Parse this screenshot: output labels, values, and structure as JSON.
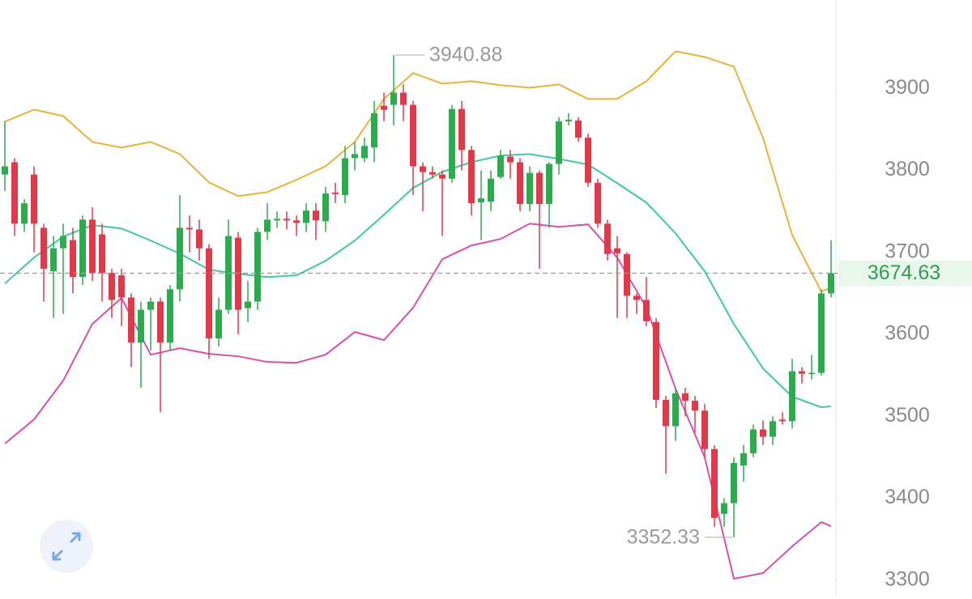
{
  "chart_data": {
    "type": "candlestick",
    "ylim": [
      3282,
      4008
    ],
    "yticks": [
      3300,
      3400,
      3500,
      3600,
      3700,
      3800,
      3900
    ],
    "up_color": "#2eab4f",
    "down_color": "#e03a4a",
    "open": [
      3795,
      3810,
      3735,
      3795,
      3730,
      3677,
      3705,
      3715,
      3670,
      3740,
      3722,
      3675,
      3672,
      3645,
      3590,
      3630,
      3640,
      3590,
      3655,
      3730,
      3728,
      3705,
      3595,
      3630,
      3718,
      3632,
      3640,
      3725,
      3739,
      3741,
      3739,
      3736,
      3751,
      3738,
      3773,
      3770,
      3815,
      3815,
      3828,
      3879,
      3880,
      3895,
      3880,
      3805,
      3798,
      3795,
      3790,
      3875,
      3825,
      3761,
      3762,
      3792,
      3817,
      3810,
      3759,
      3797,
      3759,
      3808,
      3860,
      3861,
      3840,
      3785,
      3735,
      3705,
      3698,
      3647,
      3642,
      3615,
      3520,
      3488,
      3528,
      3519,
      3507,
      3460,
      3381,
      3394,
      3440,
      3455,
      3484,
      3475,
      3496,
      3494,
      3555,
      3552,
      3553,
      3650
    ],
    "high": [
      3860,
      3815,
      3765,
      3805,
      3735,
      3720,
      3735,
      3730,
      3745,
      3755,
      3735,
      3680,
      3680,
      3650,
      3640,
      3645,
      3645,
      3660,
      3770,
      3745,
      3740,
      3710,
      3645,
      3740,
      3725,
      3665,
      3730,
      3760,
      3750,
      3750,
      3745,
      3760,
      3760,
      3780,
      3785,
      3830,
      3835,
      3840,
      3885,
      3895,
      3940.88,
      3905,
      3885,
      3810,
      3805,
      3800,
      3880,
      3885,
      3830,
      3800,
      3800,
      3825,
      3825,
      3815,
      3805,
      3800,
      3810,
      3865,
      3870,
      3865,
      3845,
      3790,
      3740,
      3720,
      3700,
      3650,
      3670,
      3620,
      3525,
      3535,
      3535,
      3525,
      3515,
      3465,
      3400,
      3450,
      3465,
      3490,
      3495,
      3500,
      3505,
      3570,
      3560,
      3575,
      3655,
      3715
    ],
    "low": [
      3775,
      3720,
      3725,
      3700,
      3640,
      3620,
      3625,
      3650,
      3660,
      3665,
      3640,
      3620,
      3610,
      3560,
      3535,
      3580,
      3505,
      3580,
      3640,
      3700,
      3690,
      3570,
      3585,
      3625,
      3600,
      3615,
      3630,
      3715,
      3730,
      3728,
      3720,
      3725,
      3715,
      3725,
      3760,
      3760,
      3800,
      3810,
      3810,
      3860,
      3855,
      3860,
      3770,
      3750,
      3790,
      3720,
      3785,
      3800,
      3745,
      3715,
      3750,
      3790,
      3790,
      3750,
      3750,
      3680,
      3730,
      3795,
      3855,
      3835,
      3780,
      3730,
      3690,
      3620,
      3620,
      3625,
      3610,
      3510,
      3430,
      3470,
      3500,
      3480,
      3450,
      3365,
      3365,
      3352.33,
      3420,
      3450,
      3465,
      3465,
      3490,
      3485,
      3540,
      3545,
      3550,
      3645
    ],
    "close": [
      3805,
      3735,
      3760,
      3735,
      3680,
      3705,
      3720,
      3670,
      3740,
      3675,
      3675,
      3642,
      3645,
      3590,
      3630,
      3640,
      3590,
      3655,
      3730,
      3728,
      3705,
      3595,
      3630,
      3720,
      3630,
      3640,
      3725,
      3740,
      3741,
      3739,
      3736,
      3751,
      3739,
      3772,
      3771,
      3815,
      3820,
      3830,
      3870,
      3874,
      3895,
      3880,
      3805,
      3798,
      3795,
      3790,
      3875,
      3825,
      3760,
      3766,
      3790,
      3818,
      3810,
      3759,
      3797,
      3759,
      3808,
      3860,
      3862,
      3840,
      3785,
      3735,
      3698,
      3699,
      3647,
      3642,
      3616,
      3520,
      3488,
      3528,
      3519,
      3507,
      3460,
      3376,
      3394,
      3443,
      3455,
      3484,
      3475,
      3494,
      3494,
      3555,
      3552,
      3553,
      3650,
      3674.63
    ],
    "bands": [
      {
        "color": "#e8b23a",
        "x": [
          0,
          3,
          6,
          9,
          12,
          15,
          18,
          21,
          24,
          27,
          30,
          33,
          36,
          39,
          42,
          45,
          48,
          51,
          54,
          57,
          60,
          63,
          66,
          69,
          72,
          75,
          78,
          81,
          84,
          85
        ],
        "values": [
          3859.5,
          3874.3,
          3866.4,
          3834.8,
          3827.9,
          3834.8,
          3820.0,
          3785.4,
          3768.7,
          3773.6,
          3788.5,
          3805.2,
          3834.8,
          3887.2,
          3918.8,
          3905.9,
          3908.9,
          3904.0,
          3901.0,
          3904.9,
          3887.2,
          3887.2,
          3908.9,
          3945.4,
          3938.5,
          3926.7,
          3839.8,
          3721.3,
          3652.2,
          3657.2
        ]
      },
      {
        "color": "#3ec9a0",
        "x": [
          0,
          3,
          6,
          9,
          12,
          15,
          18,
          21,
          24,
          27,
          30,
          33,
          36,
          39,
          42,
          45,
          48,
          51,
          54,
          57,
          60,
          63,
          66,
          69,
          72,
          75,
          78,
          81,
          84,
          85
        ],
        "values": [
          3662.1,
          3693.7,
          3719.3,
          3733.2,
          3729.2,
          3714.4,
          3698.6,
          3678.9,
          3673.9,
          3670.0,
          3672.0,
          3689.7,
          3714.4,
          3746.0,
          3778.6,
          3798.3,
          3810.2,
          3818.1,
          3820.0,
          3814.1,
          3807.2,
          3784.5,
          3760.8,
          3723.3,
          3676.9,
          3612.7,
          3558.4,
          3523.9,
          3511.1,
          3512.1
        ]
      },
      {
        "color": "#d74fa8",
        "x": [
          0,
          3,
          6,
          9,
          12,
          15,
          18,
          21,
          24,
          27,
          30,
          33,
          36,
          39,
          42,
          45,
          48,
          51,
          54,
          57,
          60,
          63,
          66,
          69,
          72,
          75,
          78,
          81,
          84,
          85
        ],
        "values": [
          3466.6,
          3496.2,
          3543.6,
          3612.7,
          3644.3,
          3575.2,
          3583.1,
          3576.2,
          3573.2,
          3566.3,
          3565.3,
          3575.2,
          3602.9,
          3593.0,
          3632.5,
          3691.7,
          3708.5,
          3716.4,
          3735.1,
          3731.2,
          3734.2,
          3693.7,
          3632.5,
          3533.8,
          3449.9,
          3301.8,
          3308.7,
          3341.3,
          3370.9,
          3365.9
        ]
      }
    ]
  }
}
